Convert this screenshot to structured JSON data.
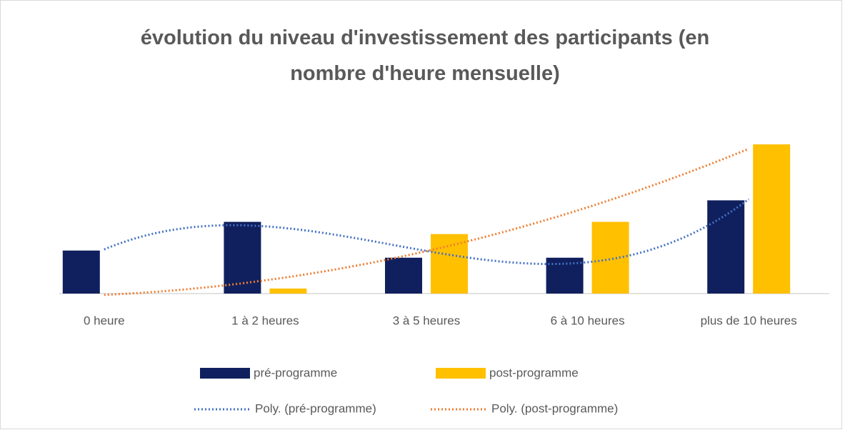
{
  "chart_data": {
    "type": "bar",
    "title": "évolution du niveau d'investissement des participants (en nombre d'heure mensuelle)",
    "categories": [
      "0 heure",
      "1 à 2 heures",
      "3 à 5 heures",
      "6 à 10 heures",
      "plus de 10 heures"
    ],
    "series": [
      {
        "name": "pré-programme",
        "color": "#10205e",
        "values": [
          6,
          10,
          5,
          5,
          13
        ]
      },
      {
        "name": "post-programme",
        "color": "#ffc000",
        "values": [
          0,
          0.7,
          8.3,
          10,
          20.8
        ]
      }
    ],
    "trendlines": [
      {
        "name": "Poly. (pré-programme)",
        "series": 0,
        "order": 3,
        "color": "#4472c4"
      },
      {
        "name": "Poly. (post-programme)",
        "series": 1,
        "order": 2,
        "color": "#ed7d31"
      }
    ],
    "ylim": [
      0,
      24
    ],
    "legend": "bottom"
  }
}
